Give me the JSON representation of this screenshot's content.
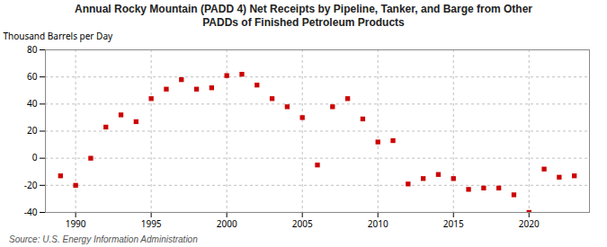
{
  "chart_data": {
    "type": "scatter",
    "title": "Annual Rocky Mountain (PADD 4) Net Receipts by Pipeline, Tanker, and Barge from Other\nPADDs of Finished Petroleum Products",
    "ylabel": "Thousand Barrels per Day",
    "annotations": [
      "Source: U.S. Energy Information Administration"
    ],
    "x": [
      1989,
      1990,
      1991,
      1992,
      1993,
      1994,
      1995,
      1996,
      1997,
      1998,
      1999,
      2000,
      2001,
      2002,
      2003,
      2004,
      2005,
      2006,
      2007,
      2008,
      2009,
      2010,
      2011,
      2012,
      2013,
      2014,
      2015,
      2016,
      2017,
      2018,
      2019,
      2020,
      2021,
      2022,
      2023
    ],
    "values": [
      -13,
      -20,
      0,
      23,
      32,
      27,
      44,
      51,
      58,
      51,
      52,
      61,
      62,
      54,
      44,
      38,
      30,
      -5,
      38,
      44,
      29,
      12,
      13,
      -19,
      -15,
      -12,
      -15,
      -23,
      -22,
      -22,
      -27,
      -40,
      -8,
      -14,
      -13
    ],
    "color": "#cc0000",
    "marker": "square",
    "xlim": [
      1988,
      2024
    ],
    "ylim": [
      -40,
      80
    ],
    "xticks": [
      1990,
      1995,
      2000,
      2005,
      2010,
      2015,
      2020
    ],
    "yticks": [
      -40,
      -20,
      0,
      20,
      40,
      60,
      80
    ],
    "grid": true
  }
}
